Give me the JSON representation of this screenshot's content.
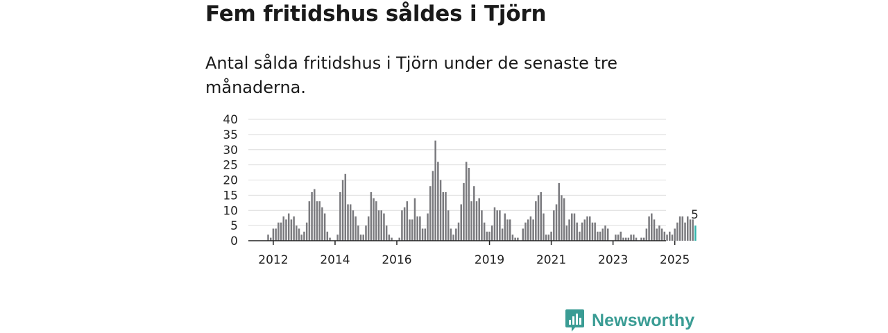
{
  "title": "Fem fritidshus såldes i Tjörn",
  "subtitle": "Antal sålda fritidshus i Tjörn under de senaste tre månaderna.",
  "brand": {
    "name": "Newsworthy",
    "color": "#3a9c94",
    "icon": "bar-chart-speech-bubble-icon"
  },
  "chart_data": {
    "type": "bar",
    "title": "",
    "xlabel": "",
    "ylabel": "",
    "ylim": [
      0,
      40
    ],
    "yticks": [
      0,
      5,
      10,
      15,
      20,
      25,
      30,
      35,
      40
    ],
    "grid": true,
    "bar_color": "#7a7a7e",
    "highlight_color": "#30b3aa",
    "highlight_label": "5",
    "start": "2011-11",
    "x_tick_labels": [
      {
        "label": "2012",
        "period": "2012-01"
      },
      {
        "label": "2014",
        "period": "2014-01"
      },
      {
        "label": "2016",
        "period": "2016-01"
      },
      {
        "label": "2019",
        "period": "2019-01"
      },
      {
        "label": "2021",
        "period": "2021-01"
      },
      {
        "label": "2023",
        "period": "2023-01"
      },
      {
        "label": "2025",
        "period": "2025-01"
      }
    ],
    "series": [
      {
        "name": "Antal sålda fritidshus",
        "values": [
          2,
          1,
          4,
          4,
          6,
          6,
          8,
          7,
          9,
          7,
          8,
          5,
          4,
          2,
          3,
          6,
          13,
          16,
          17,
          13,
          13,
          11,
          9,
          3,
          1,
          0,
          0,
          2,
          16,
          20,
          22,
          12,
          12,
          10,
          8,
          5,
          2,
          2,
          5,
          8,
          16,
          14,
          13,
          10,
          10,
          9,
          5,
          2,
          1,
          0,
          0,
          1,
          10,
          11,
          13,
          7,
          7,
          14,
          8,
          8,
          4,
          4,
          9,
          18,
          23,
          33,
          26,
          20,
          16,
          16,
          10,
          4,
          2,
          4,
          6,
          12,
          19,
          26,
          24,
          13,
          18,
          13,
          14,
          10,
          6,
          3,
          3,
          5,
          11,
          10,
          10,
          4,
          9,
          7,
          7,
          2,
          1,
          1,
          0,
          4,
          6,
          7,
          8,
          7,
          13,
          15,
          16,
          9,
          2,
          2,
          3,
          10,
          12,
          19,
          15,
          14,
          5,
          7,
          9,
          9,
          6,
          3,
          6,
          7,
          8,
          8,
          6,
          6,
          3,
          3,
          4,
          5,
          4,
          0,
          0,
          2,
          2,
          3,
          1,
          1,
          1,
          2,
          2,
          1,
          0,
          1,
          1,
          4,
          8,
          9,
          7,
          4,
          5,
          4,
          3,
          2,
          3,
          2,
          4,
          6,
          8,
          8,
          6,
          8,
          7,
          7,
          5
        ]
      }
    ]
  }
}
